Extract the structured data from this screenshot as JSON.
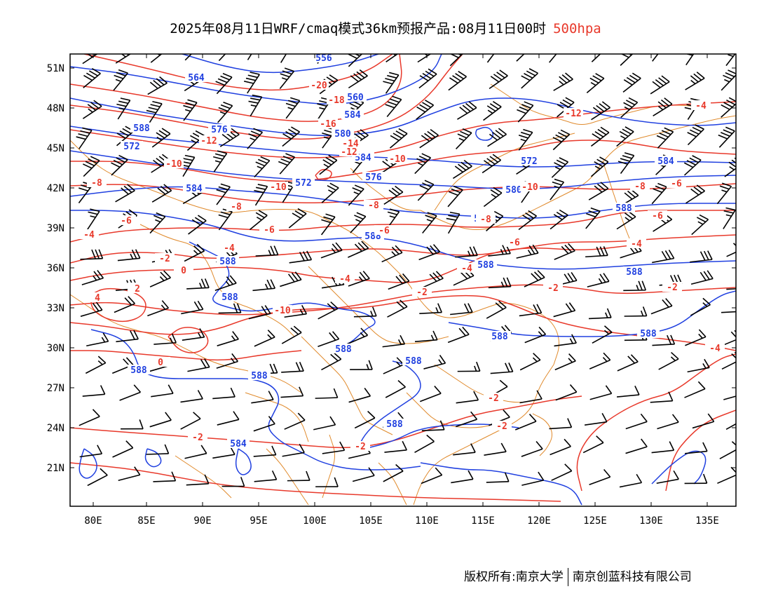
{
  "title": {
    "main": "2025年08月11日WRF/cmaq模式36km预报产品:08月11日00时",
    "level": "500hpa"
  },
  "footer": {
    "left": "版权所有:南京大学",
    "right": "南京创蓝科技有限公司"
  },
  "axes": {
    "lat_labels": [
      "51N",
      "48N",
      "45N",
      "42N",
      "39N",
      "36N",
      "33N",
      "30N",
      "27N",
      "24N",
      "21N"
    ],
    "lon_labels": [
      "80E",
      "85E",
      "90E",
      "95E",
      "100E",
      "105E",
      "110E",
      "115E",
      "120E",
      "125E",
      "130E",
      "135E"
    ]
  },
  "colors": {
    "height_contour": "#2040e0",
    "temperature_contour": "#e8392b",
    "boundary": "#e08a2c",
    "wind_barb": "#000000"
  },
  "height_labels": [
    "556",
    "564",
    "560",
    "584",
    "588",
    "576",
    "572",
    "580",
    "584",
    "576",
    "572",
    "584",
    "572",
    "580",
    "584",
    "588",
    "584",
    "588",
    "588",
    "588",
    "588",
    "588",
    "588",
    "588",
    "588",
    "588",
    "588",
    "588",
    "588",
    "584"
  ],
  "temperature_labels": [
    "-20",
    "-18",
    "-16",
    "-14",
    "-12",
    "-12",
    "-10",
    "-10",
    "-10",
    "-10",
    "-8",
    "-8",
    "-8",
    "-8",
    "-8",
    "-6",
    "-6",
    "-6",
    "-6",
    "-6",
    "-6",
    "-4",
    "-4",
    "-4",
    "-4",
    "-4",
    "-4",
    "-12",
    "-10",
    "-2",
    "-2",
    "-2",
    "-2",
    "-2",
    "-2",
    "-2",
    "-2",
    "0",
    "0",
    "2",
    "4",
    "-2",
    "-4"
  ]
}
